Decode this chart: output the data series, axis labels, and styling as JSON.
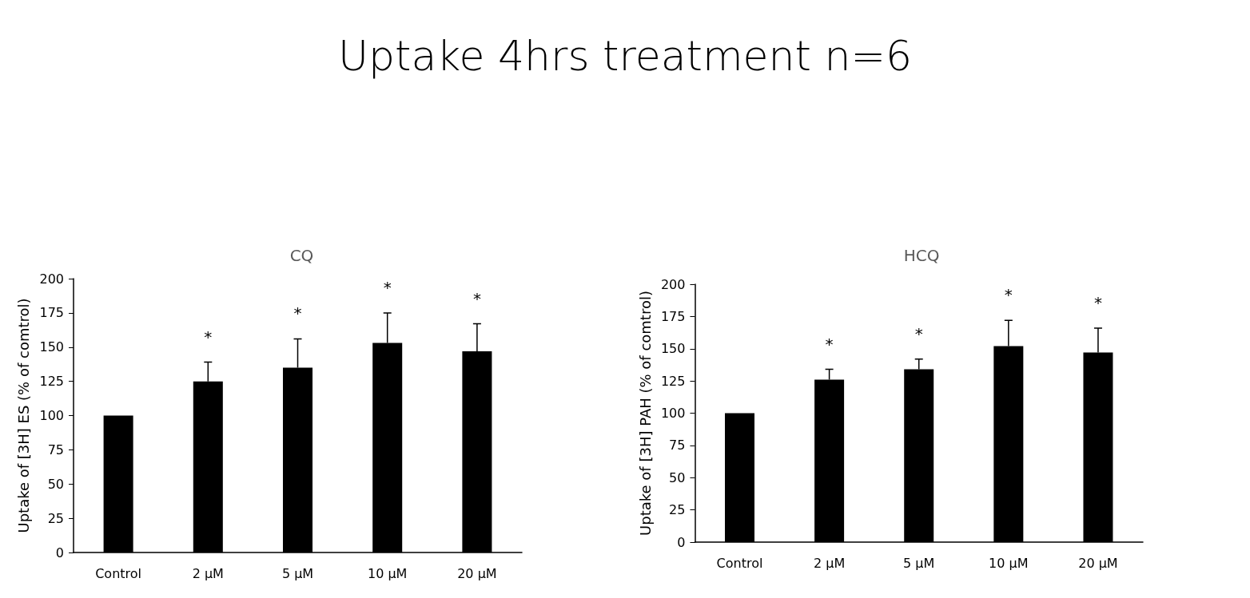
{
  "chart_data": [
    {
      "type": "other",
      "title": "Uptake 4hrs treatment n=6"
    },
    {
      "type": "bar",
      "title": "CQ",
      "ylabel": "Uptake of [3H] ES (% of comtrol)",
      "categories": [
        "Control",
        "2 µM",
        "5 µM",
        "10 µM",
        "20 µM"
      ],
      "values": [
        100,
        125,
        135,
        153,
        147
      ],
      "color": "#000000",
      "errors": [
        null,
        [
          125,
          139
        ],
        [
          135,
          156
        ],
        [
          153,
          175
        ],
        [
          147,
          167
        ]
      ],
      "ylim": [
        0,
        200
      ],
      "yticks": [
        0,
        25,
        50,
        75,
        100,
        125,
        150,
        175,
        200
      ],
      "grid": false,
      "annotations": [
        "*",
        "*",
        "*",
        "*"
      ]
    },
    {
      "type": "bar",
      "title": "HCQ",
      "ylabel": "Uptake of [3H] PAH (% of comtrol)",
      "categories": [
        "Control",
        "2 µM",
        "5 µM",
        "10 µM",
        "20 µM"
      ],
      "values": [
        100,
        126,
        134,
        152,
        147
      ],
      "color": "#000000",
      "errors": [
        null,
        [
          126,
          134
        ],
        [
          134,
          142
        ],
        [
          152,
          172
        ],
        [
          147,
          166
        ]
      ],
      "ylim": [
        0,
        200
      ],
      "yticks": [
        0,
        25,
        50,
        75,
        100,
        125,
        150,
        175,
        200
      ],
      "grid": false,
      "annotations": [
        "*",
        "*",
        "*",
        "*"
      ]
    }
  ]
}
